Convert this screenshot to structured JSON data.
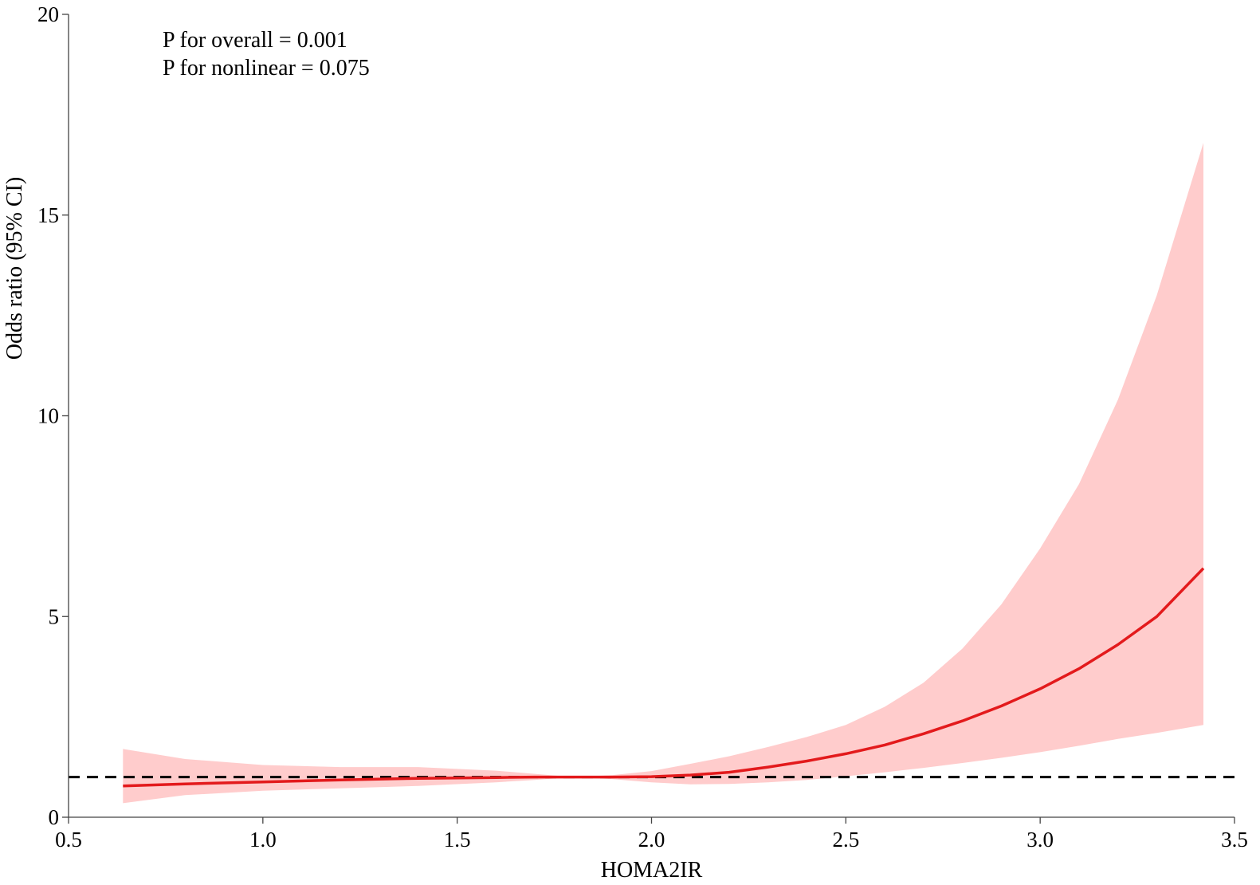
{
  "chart_data": {
    "type": "line",
    "xlabel": "HOMA2IR",
    "ylabel": "Odds ratio (95% CI)",
    "xlim": [
      0.5,
      3.5
    ],
    "ylim": [
      0,
      20
    ],
    "xticks": [
      0.5,
      1.0,
      1.5,
      2.0,
      2.5,
      3.0,
      3.5
    ],
    "xtick_labels": [
      "0.5",
      "1.0",
      "1.5",
      "2.0",
      "2.5",
      "3.0",
      "3.5"
    ],
    "yticks": [
      0,
      5,
      10,
      15,
      20
    ],
    "ytick_labels": [
      "0",
      "5",
      "10",
      "15",
      "20"
    ],
    "grid": false,
    "annotations": [
      "P for overall = 0.001",
      "P for nonlinear = 0.075"
    ],
    "reference_line": {
      "y": 1,
      "style": "dashed",
      "color": "#000000"
    },
    "series": [
      {
        "type": "line",
        "color": "#e31a1c",
        "x": [
          0.64,
          0.8,
          1.0,
          1.2,
          1.4,
          1.6,
          1.7,
          1.8,
          1.9,
          2.0,
          2.1,
          2.2,
          2.3,
          2.4,
          2.5,
          2.6,
          2.7,
          2.8,
          2.9,
          3.0,
          3.1,
          3.2,
          3.3,
          3.42
        ],
        "y": [
          0.78,
          0.83,
          0.88,
          0.93,
          0.97,
          0.99,
          1.0,
          1.0,
          1.0,
          1.01,
          1.05,
          1.12,
          1.25,
          1.4,
          1.58,
          1.8,
          2.08,
          2.4,
          2.77,
          3.2,
          3.7,
          4.3,
          5.0,
          6.2
        ]
      },
      {
        "type": "ci_band",
        "color": "#ffcccc",
        "x": [
          0.64,
          0.8,
          1.0,
          1.2,
          1.4,
          1.6,
          1.7,
          1.8,
          1.9,
          2.0,
          2.1,
          2.2,
          2.3,
          2.4,
          2.5,
          2.6,
          2.7,
          2.8,
          2.9,
          3.0,
          3.1,
          3.2,
          3.3,
          3.42
        ],
        "lower": [
          0.35,
          0.55,
          0.66,
          0.72,
          0.78,
          0.87,
          0.93,
          1.0,
          0.95,
          0.87,
          0.82,
          0.83,
          0.87,
          0.93,
          1.02,
          1.12,
          1.23,
          1.35,
          1.48,
          1.62,
          1.78,
          1.95,
          2.1,
          2.3
        ],
        "upper": [
          1.7,
          1.45,
          1.3,
          1.25,
          1.25,
          1.16,
          1.08,
          1.0,
          1.05,
          1.15,
          1.33,
          1.52,
          1.75,
          2.0,
          2.3,
          2.75,
          3.35,
          4.2,
          5.3,
          6.7,
          8.3,
          10.4,
          13.0,
          16.8
        ]
      }
    ]
  }
}
